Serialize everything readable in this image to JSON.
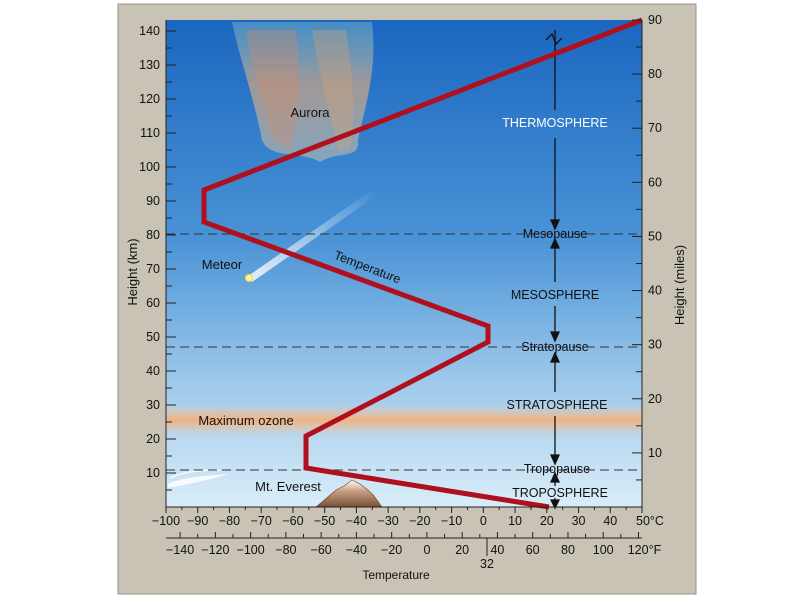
{
  "axes": {
    "left_label": "Height (km)",
    "right_label": "Height (miles)",
    "bottom_label": "Temperature",
    "km_ticks": [
      "10",
      "20",
      "30",
      "40",
      "50",
      "60",
      "70",
      "80",
      "90",
      "100",
      "110",
      "120",
      "130",
      "140"
    ],
    "mile_ticks": [
      "10",
      "20",
      "30",
      "40",
      "50",
      "60",
      "70",
      "80",
      "90"
    ],
    "celsius_ticks": [
      "−100",
      "−90",
      "−80",
      "−70",
      "−60",
      "−50",
      "−40",
      "−30",
      "−20",
      "−10",
      "0",
      "10",
      "20",
      "30",
      "40",
      "50°C"
    ],
    "fahrenheit_ticks": [
      "−140",
      "−120",
      "−100",
      "−80",
      "−60",
      "−40",
      "−20",
      "0",
      "20",
      "40",
      "60",
      "80",
      "100",
      "120°F"
    ],
    "freezing_label": "32"
  },
  "layers": {
    "thermosphere": "THERMOSPHERE",
    "mesopause": "Mesopause",
    "mesosphere": "MESOSPHERE",
    "stratopause": "Stratopause",
    "stratosphere": "STRATOSPHERE",
    "tropopause": "Tropopause",
    "troposphere": "TROPOSPHERE"
  },
  "features": {
    "aurora": "Aurora",
    "meteor": "Meteor",
    "temperature": "Temperature",
    "ozone": "Maximum ozone",
    "everest": "Mt. Everest"
  },
  "colors": {
    "frame": "#c8c3b4",
    "sky_top": "#1f6fc4",
    "sky_bottom": "#cfe7f6",
    "temperature_line": "#b0101e",
    "ozone_band": "#f4b585"
  }
}
